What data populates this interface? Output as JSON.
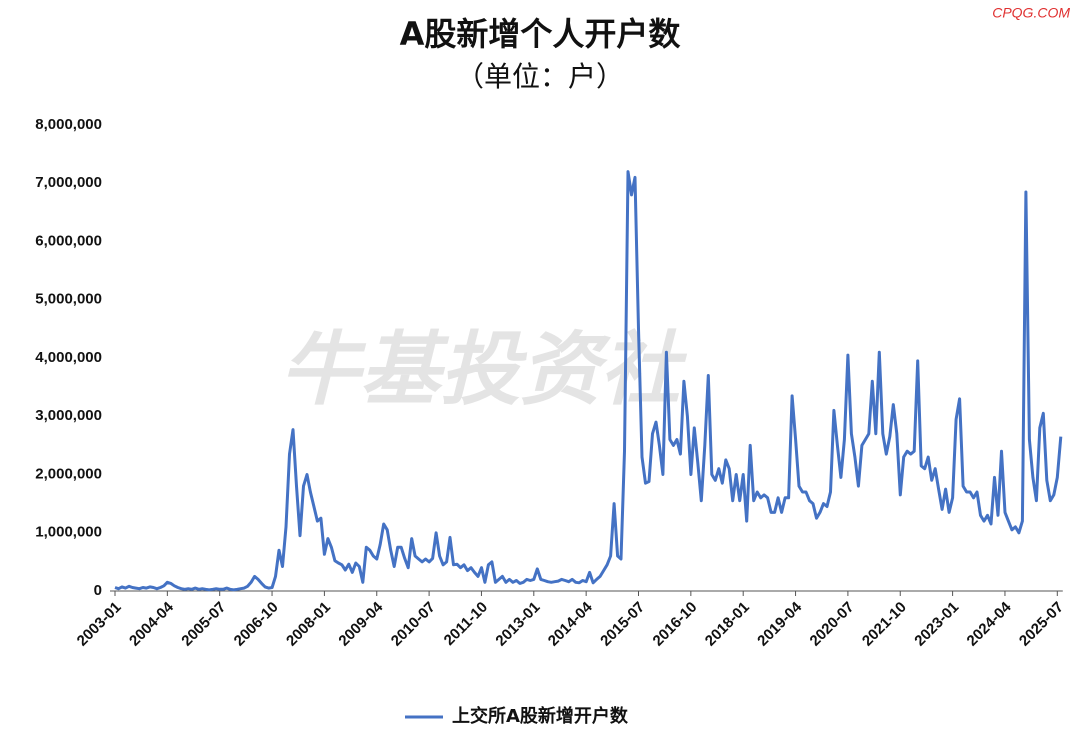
{
  "chart_data": {
    "type": "line",
    "title": "A股新增个人开户数",
    "subtitle": "（单位：户）",
    "source": "CPQG.COM",
    "watermark": "牛基投资社",
    "categories": [
      "2003-01",
      null,
      null,
      null,
      null,
      null,
      null,
      null,
      null,
      null,
      null,
      null,
      null,
      null,
      null,
      "2004-04",
      null,
      null,
      null,
      null,
      null,
      null,
      null,
      null,
      null,
      null,
      null,
      null,
      null,
      null,
      "2005-07",
      null,
      null,
      null,
      null,
      null,
      null,
      null,
      null,
      null,
      null,
      null,
      null,
      null,
      null,
      "2006-10",
      null,
      null,
      null,
      null,
      null,
      null,
      null,
      null,
      null,
      null,
      null,
      null,
      null,
      null,
      "2008-01",
      null,
      null,
      null,
      null,
      null,
      null,
      null,
      null,
      null,
      null,
      null,
      null,
      null,
      null,
      "2009-04",
      null,
      null,
      null,
      null,
      null,
      null,
      null,
      null,
      null,
      null,
      null,
      null,
      null,
      null,
      "2010-07",
      null,
      null,
      null,
      null,
      null,
      null,
      null,
      null,
      null,
      null,
      null,
      null,
      null,
      null,
      "2011-10",
      null,
      null,
      null,
      null,
      null,
      null,
      null,
      null,
      null,
      null,
      null,
      null,
      null,
      null,
      "2013-01",
      null,
      null,
      null,
      null,
      null,
      null,
      null,
      null,
      null,
      null,
      null,
      null,
      null,
      null,
      "2014-04",
      null,
      null,
      null,
      null,
      null,
      null,
      null,
      null,
      null,
      null,
      null,
      null,
      null,
      null,
      "2015-07",
      null,
      null,
      null,
      null,
      null,
      null,
      null,
      null,
      null,
      null,
      null,
      null,
      null,
      null,
      "2016-10",
      null,
      null,
      null,
      null,
      null,
      null,
      null,
      null,
      null,
      null,
      null,
      null,
      null,
      null,
      "2018-01",
      null,
      null,
      null,
      null,
      null,
      null,
      null,
      null,
      null,
      null,
      null,
      null,
      null,
      null,
      "2019-04",
      null,
      null,
      null,
      null,
      null,
      null,
      null,
      null,
      null,
      null,
      null,
      null,
      null,
      null,
      "2020-07",
      null,
      null,
      null,
      null,
      null,
      null,
      null,
      null,
      null,
      null,
      null,
      null,
      null,
      null,
      "2021-10",
      null,
      null,
      null,
      null,
      null,
      null,
      null,
      null,
      null,
      null,
      null,
      null,
      null,
      null,
      "2023-01",
      null,
      null,
      null,
      null,
      null,
      null,
      null,
      null,
      null,
      null,
      null,
      null,
      null,
      null,
      "2024-04",
      null,
      null,
      null,
      null,
      null,
      null,
      null,
      null,
      null,
      null,
      null,
      null,
      null,
      null,
      "2025-07",
      null
    ],
    "series": [
      {
        "name": "上交所A股新增开户数",
        "color": "#4472c4",
        "values": [
          60000,
          40000,
          70000,
          50000,
          80000,
          60000,
          50000,
          40000,
          60000,
          50000,
          70000,
          60000,
          40000,
          60000,
          90000,
          150000,
          130000,
          90000,
          60000,
          40000,
          30000,
          40000,
          30000,
          50000,
          30000,
          40000,
          30000,
          20000,
          30000,
          40000,
          30000,
          30000,
          50000,
          30000,
          20000,
          30000,
          40000,
          50000,
          80000,
          150000,
          250000,
          200000,
          130000,
          70000,
          50000,
          60000,
          250000,
          700000,
          420000,
          1100000,
          2350000,
          2770000,
          1800000,
          950000,
          1800000,
          2000000,
          1700000,
          1450000,
          1200000,
          1250000,
          630000,
          900000,
          750000,
          520000,
          480000,
          450000,
          360000,
          460000,
          320000,
          480000,
          420000,
          150000,
          750000,
          700000,
          600000,
          550000,
          800000,
          1150000,
          1050000,
          700000,
          420000,
          750000,
          750000,
          560000,
          400000,
          900000,
          600000,
          550000,
          500000,
          550000,
          500000,
          560000,
          1000000,
          600000,
          450000,
          500000,
          920000,
          450000,
          460000,
          400000,
          450000,
          350000,
          400000,
          320000,
          250000,
          400000,
          150000,
          450000,
          500000,
          150000,
          200000,
          250000,
          150000,
          200000,
          150000,
          180000,
          130000,
          150000,
          200000,
          180000,
          200000,
          380000,
          200000,
          180000,
          160000,
          150000,
          160000,
          170000,
          200000,
          180000,
          160000,
          200000,
          150000,
          140000,
          180000,
          160000,
          320000,
          140000,
          200000,
          250000,
          350000,
          450000,
          600000,
          1500000,
          600000,
          550000,
          2400000,
          7200000,
          6800000,
          7100000,
          4500000,
          2300000,
          1850000,
          1880000,
          2700000,
          2900000,
          2500000,
          2000000,
          4100000,
          2600000,
          2500000,
          2600000,
          2350000,
          3600000,
          3000000,
          2000000,
          2800000,
          2200000,
          1550000,
          2500000,
          3700000,
          2000000,
          1900000,
          2100000,
          1850000,
          2250000,
          2100000,
          1550000,
          2000000,
          1550000,
          2000000,
          1200000,
          2500000,
          1550000,
          1700000,
          1600000,
          1650000,
          1600000,
          1350000,
          1350000,
          1600000,
          1350000,
          1600000,
          1600000,
          3350000,
          2600000,
          1800000,
          1700000,
          1700000,
          1550000,
          1500000,
          1250000,
          1350000,
          1500000,
          1450000,
          1700000,
          3100000,
          2500000,
          1950000,
          2600000,
          4050000,
          2700000,
          2300000,
          1800000,
          2500000,
          2600000,
          2700000,
          3600000,
          2700000,
          4100000,
          2700000,
          2350000,
          2650000,
          3200000,
          2700000,
          1650000,
          2300000,
          2400000,
          2350000,
          2400000,
          3950000,
          2150000,
          2100000,
          2300000,
          1900000,
          2100000,
          1750000,
          1400000,
          1750000,
          1350000,
          1600000,
          2950000,
          3300000,
          1800000,
          1700000,
          1700000,
          1600000,
          1700000,
          1300000,
          1200000,
          1300000,
          1150000,
          1950000,
          1300000,
          2400000,
          1350000,
          1200000,
          1050000,
          1100000,
          1000000,
          1200000,
          6850000,
          2600000,
          1950000,
          1550000,
          2800000,
          3050000,
          1900000,
          1550000,
          1650000,
          1950000,
          2650000
        ]
      }
    ],
    "ylim": [
      0,
      8000000
    ],
    "yticks": [
      0,
      {
        "value": 1000000,
        "label": "1,000,000"
      },
      {
        "value": 2000000,
        "label": "2,000,000"
      },
      {
        "value": 3000000,
        "label": "3,000,000"
      },
      {
        "value": 4000000,
        "label": "4,000,000"
      },
      {
        "value": 5000000,
        "label": "5,000,000"
      },
      {
        "value": 6000000,
        "label": "6,000,000"
      },
      {
        "value": 7000000,
        "label": "7,000,000"
      },
      {
        "value": 8000000,
        "label": "8,000,000"
      }
    ],
    "grid": false,
    "legend": "bottom"
  }
}
